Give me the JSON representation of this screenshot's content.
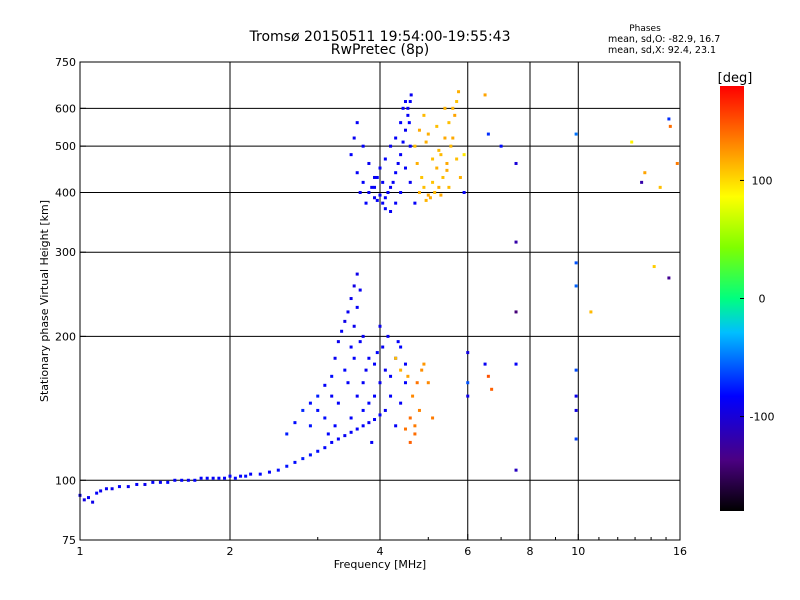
{
  "chart_data": {
    "type": "scatter",
    "title": "Tromsø 20150511 19:54:00-19:55:43",
    "subtitle": "RwPretec (8p)",
    "xlabel": "Frequency [MHz]",
    "ylabel": "Stationary phase Virtual Height [km]",
    "xscale": "log",
    "yscale": "log",
    "xlim": [
      1,
      16
    ],
    "ylim": [
      75,
      750
    ],
    "x_ticks": [
      1,
      2,
      4,
      6,
      8,
      10,
      16
    ],
    "x_tick_labels": [
      "1",
      "2",
      "4",
      "6",
      "8",
      "10",
      "16"
    ],
    "y_ticks": [
      75,
      100,
      200,
      300,
      400,
      500,
      600,
      750
    ],
    "y_tick_labels": [
      "75",
      "100",
      "200",
      "300",
      "400",
      "500",
      "600",
      "750"
    ],
    "grid": true,
    "colorbar": {
      "label": "[deg]",
      "range": [
        -180,
        180
      ],
      "ticks": [
        100,
        0,
        -100
      ],
      "tick_labels": [
        "100",
        "0",
        "-100"
      ]
    },
    "stats_box": {
      "title": "Phases",
      "line1": "mean, sd,O: -82.9, 16.7",
      "line2": "mean, sd,X:  92.4, 23.1"
    },
    "series": [
      {
        "points": [
          [
            1.0,
            93,
            -90
          ],
          [
            1.02,
            91,
            -95
          ],
          [
            1.04,
            92,
            -88
          ],
          [
            1.06,
            90,
            -92
          ],
          [
            1.08,
            94,
            -85
          ],
          [
            1.1,
            95,
            -90
          ],
          [
            1.13,
            96,
            -87
          ],
          [
            1.16,
            96,
            -90
          ],
          [
            1.2,
            97,
            -84
          ],
          [
            1.25,
            97,
            -88
          ],
          [
            1.3,
            98,
            -86
          ],
          [
            1.35,
            98,
            -90
          ],
          [
            1.4,
            99,
            -85
          ],
          [
            1.45,
            99,
            -88
          ],
          [
            1.5,
            99,
            -82
          ],
          [
            1.55,
            100,
            -86
          ],
          [
            1.6,
            100,
            -84
          ],
          [
            1.65,
            100,
            -88
          ],
          [
            1.7,
            100,
            -83
          ],
          [
            1.75,
            101,
            -86
          ],
          [
            1.8,
            101,
            -82
          ],
          [
            1.85,
            101,
            -86
          ],
          [
            1.9,
            101,
            -84
          ],
          [
            1.95,
            101,
            -85
          ],
          [
            2.0,
            102,
            -86
          ],
          [
            2.05,
            101,
            -82
          ],
          [
            2.1,
            102,
            -84
          ],
          [
            2.15,
            102,
            -80
          ],
          [
            2.2,
            103,
            -85
          ],
          [
            2.3,
            103,
            -82
          ],
          [
            2.4,
            104,
            -84
          ],
          [
            2.5,
            105,
            -80
          ],
          [
            2.6,
            107,
            -78
          ],
          [
            2.7,
            109,
            -80
          ],
          [
            2.8,
            111,
            -76
          ],
          [
            2.9,
            113,
            -78
          ],
          [
            3.0,
            115,
            -80
          ],
          [
            3.1,
            117,
            -82
          ],
          [
            3.2,
            120,
            -85
          ],
          [
            3.3,
            122,
            -84
          ],
          [
            3.4,
            124,
            -88
          ],
          [
            3.5,
            126,
            -86
          ],
          [
            3.6,
            128,
            -85
          ],
          [
            3.7,
            130,
            -84
          ],
          [
            3.8,
            132,
            -88
          ],
          [
            3.9,
            134,
            -86
          ],
          [
            4.0,
            137,
            -84
          ],
          [
            4.1,
            140,
            -88
          ],
          [
            2.6,
            125,
            -75
          ],
          [
            2.7,
            132,
            -80
          ],
          [
            2.8,
            140,
            -72
          ],
          [
            2.9,
            145,
            -80
          ],
          [
            3.0,
            150,
            -75
          ],
          [
            3.1,
            158,
            -85
          ],
          [
            3.2,
            165,
            -80
          ],
          [
            3.25,
            180,
            -88
          ],
          [
            3.3,
            195,
            -90
          ],
          [
            3.35,
            205,
            -86
          ],
          [
            3.4,
            215,
            -92
          ],
          [
            3.45,
            225,
            -88
          ],
          [
            3.5,
            240,
            -90
          ],
          [
            3.55,
            255,
            -94
          ],
          [
            3.6,
            270,
            -92
          ],
          [
            3.6,
            230,
            -86
          ],
          [
            3.65,
            250,
            -88
          ],
          [
            3.55,
            210,
            -90
          ],
          [
            3.5,
            190,
            -85
          ],
          [
            3.7,
            200,
            -88
          ],
          [
            3.8,
            180,
            -86
          ],
          [
            3.9,
            175,
            -84
          ],
          [
            4.0,
            210,
            -90
          ],
          [
            4.05,
            190,
            -86
          ],
          [
            4.1,
            170,
            -88
          ],
          [
            4.2,
            165,
            -84
          ],
          [
            4.3,
            180,
            -86
          ],
          [
            4.4,
            190,
            -82
          ],
          [
            4.5,
            175,
            -85
          ],
          [
            4.0,
            160,
            -88
          ],
          [
            3.9,
            150,
            -84
          ],
          [
            3.7,
            160,
            -86
          ],
          [
            3.4,
            170,
            -82
          ],
          [
            3.2,
            150,
            -86
          ],
          [
            3.0,
            140,
            -80
          ],
          [
            2.9,
            130,
            -78
          ],
          [
            3.3,
            145,
            -84
          ],
          [
            3.6,
            150,
            -86
          ],
          [
            3.8,
            145,
            -82
          ],
          [
            4.2,
            150,
            -84
          ],
          [
            4.4,
            145,
            -86
          ],
          [
            3.1,
            135,
            -80
          ],
          [
            3.5,
            135,
            -84
          ],
          [
            3.7,
            140,
            -82
          ],
          [
            4.3,
            130,
            -86
          ],
          [
            4.5,
            160,
            -84
          ],
          [
            3.45,
            160,
            -85
          ],
          [
            3.75,
            170,
            -88
          ],
          [
            3.55,
            180,
            -84
          ],
          [
            3.65,
            195,
            -86
          ],
          [
            3.95,
            185,
            -82
          ],
          [
            4.15,
            200,
            -88
          ],
          [
            4.35,
            195,
            -85
          ],
          [
            3.25,
            130,
            -83
          ],
          [
            3.85,
            120,
            -86
          ],
          [
            3.15,
            125,
            -82
          ],
          [
            3.8,
            400,
            -88
          ],
          [
            3.85,
            410,
            -86
          ],
          [
            3.9,
            390,
            -90
          ],
          [
            3.95,
            385,
            -84
          ],
          [
            4.0,
            395,
            -88
          ],
          [
            4.05,
            380,
            -86
          ],
          [
            4.1,
            390,
            -84
          ],
          [
            4.15,
            400,
            -86
          ],
          [
            4.2,
            410,
            -88
          ],
          [
            4.25,
            420,
            -86
          ],
          [
            4.3,
            440,
            -84
          ],
          [
            4.35,
            460,
            -88
          ],
          [
            4.4,
            480,
            -86
          ],
          [
            4.45,
            510,
            -84
          ],
          [
            4.5,
            540,
            -88
          ],
          [
            4.55,
            580,
            -86
          ],
          [
            4.6,
            620,
            -84
          ],
          [
            4.62,
            640,
            -88
          ],
          [
            4.5,
            620,
            -86
          ],
          [
            4.55,
            600,
            -88
          ],
          [
            4.4,
            560,
            -84
          ],
          [
            4.3,
            520,
            -86
          ],
          [
            4.2,
            500,
            -88
          ],
          [
            4.1,
            470,
            -84
          ],
          [
            4.0,
            450,
            -86
          ],
          [
            3.9,
            430,
            -88
          ],
          [
            3.7,
            420,
            -84
          ],
          [
            3.6,
            440,
            -86
          ],
          [
            3.5,
            480,
            -84
          ],
          [
            3.55,
            520,
            -88
          ],
          [
            3.6,
            560,
            -86
          ],
          [
            3.7,
            500,
            -84
          ],
          [
            3.8,
            460,
            -88
          ],
          [
            3.9,
            410,
            -86
          ],
          [
            4.1,
            370,
            -84
          ],
          [
            4.2,
            365,
            -88
          ],
          [
            4.3,
            380,
            -86
          ],
          [
            4.4,
            400,
            -84
          ],
          [
            4.6,
            420,
            -88
          ],
          [
            4.7,
            380,
            -86
          ],
          [
            3.75,
            380,
            -84
          ],
          [
            3.65,
            400,
            -88
          ],
          [
            4.5,
            450,
            -85
          ],
          [
            4.6,
            500,
            -84
          ],
          [
            4.45,
            600,
            -86
          ],
          [
            4.58,
            560,
            -83
          ],
          [
            3.95,
            430,
            -85
          ],
          [
            4.05,
            420,
            -86
          ],
          [
            6.0,
            185,
            -95
          ],
          [
            6.0,
            150,
            -92
          ],
          [
            6.5,
            175,
            -88
          ],
          [
            7.5,
            175,
            -86
          ],
          [
            7.5,
            105,
            -110
          ],
          [
            7.5,
            315,
            -120
          ],
          [
            7.5,
            225,
            -140
          ],
          [
            7.5,
            460,
            -100
          ],
          [
            9.9,
            285,
            -60
          ],
          [
            9.9,
            255,
            -55
          ],
          [
            9.9,
            170,
            -62
          ],
          [
            9.9,
            150,
            -90
          ],
          [
            9.9,
            140,
            -95
          ],
          [
            9.9,
            122,
            -65
          ],
          [
            9.9,
            530,
            -50
          ],
          [
            13.4,
            420,
            -120
          ],
          [
            15.2,
            265,
            -130
          ],
          [
            15.2,
            570,
            -70
          ],
          [
            7.0,
            500,
            -80
          ],
          [
            6.6,
            530,
            -70
          ],
          [
            5.9,
            400,
            -85
          ],
          [
            6.0,
            160,
            -60
          ]
        ]
      },
      {
        "points": [
          [
            4.8,
            400,
            115
          ],
          [
            4.9,
            410,
            110
          ],
          [
            5.0,
            395,
            120
          ],
          [
            5.1,
            420,
            108
          ],
          [
            5.2,
            450,
            115
          ],
          [
            5.3,
            480,
            112
          ],
          [
            5.4,
            520,
            118
          ],
          [
            5.5,
            560,
            110
          ],
          [
            5.6,
            600,
            114
          ],
          [
            5.7,
            620,
            108
          ],
          [
            5.75,
            650,
            116
          ],
          [
            5.65,
            580,
            120
          ],
          [
            5.55,
            500,
            112
          ],
          [
            5.45,
            460,
            118
          ],
          [
            5.35,
            430,
            110
          ],
          [
            5.25,
            410,
            116
          ],
          [
            5.15,
            400,
            112
          ],
          [
            5.05,
            390,
            118
          ],
          [
            4.95,
            385,
            114
          ],
          [
            4.85,
            430,
            108
          ],
          [
            4.75,
            460,
            116
          ],
          [
            4.7,
            500,
            110
          ],
          [
            4.8,
            540,
            118
          ],
          [
            4.9,
            580,
            112
          ],
          [
            5.0,
            530,
            116
          ],
          [
            5.2,
            550,
            110
          ],
          [
            5.4,
            600,
            114
          ],
          [
            5.6,
            520,
            118
          ],
          [
            5.7,
            470,
            110
          ],
          [
            5.8,
            430,
            115
          ],
          [
            5.5,
            410,
            112
          ],
          [
            5.3,
            395,
            118
          ],
          [
            5.1,
            470,
            110
          ],
          [
            4.95,
            510,
            116
          ],
          [
            5.25,
            490,
            112
          ],
          [
            5.45,
            445,
            117
          ],
          [
            4.6,
            135,
            140
          ],
          [
            4.7,
            130,
            135
          ],
          [
            4.65,
            150,
            130
          ],
          [
            4.75,
            160,
            138
          ],
          [
            4.8,
            140,
            132
          ],
          [
            4.85,
            170,
            128
          ],
          [
            4.55,
            165,
            120
          ],
          [
            4.9,
            175,
            125
          ],
          [
            5.0,
            160,
            130
          ],
          [
            4.6,
            120,
            145
          ],
          [
            4.7,
            125,
            140
          ],
          [
            4.5,
            128,
            138
          ],
          [
            5.1,
            135,
            135
          ],
          [
            4.4,
            170,
            115
          ],
          [
            4.3,
            180,
            110
          ],
          [
            6.6,
            165,
            150
          ],
          [
            6.7,
            155,
            145
          ],
          [
            10.6,
            225,
            112
          ],
          [
            12.8,
            510,
            90
          ],
          [
            13.6,
            440,
            120
          ],
          [
            14.2,
            280,
            105
          ],
          [
            15.3,
            550,
            140
          ],
          [
            15.8,
            460,
            135
          ],
          [
            14.6,
            410,
            110
          ],
          [
            6.5,
            640,
            120
          ],
          [
            5.9,
            480,
            95
          ]
        ]
      }
    ]
  }
}
